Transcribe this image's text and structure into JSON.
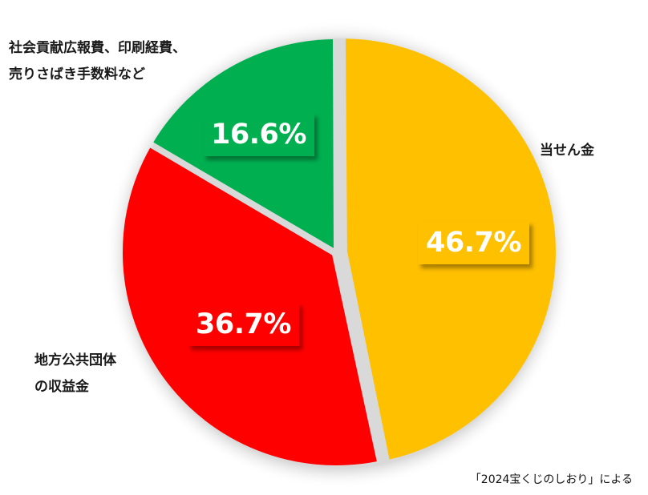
{
  "chart_data": {
    "type": "pie",
    "title": "",
    "start_angle_deg": 0,
    "direction": "clockwise",
    "exploded": true,
    "slices": [
      {
        "label": "当せん金",
        "value": 46.7,
        "display": "46.7%",
        "color": "#FFC000"
      },
      {
        "label": "地方公共団体の収益金",
        "value": 36.7,
        "display": "36.7%",
        "color": "#FF0000"
      },
      {
        "label": "社会貢献広報費、印刷経費、売りさばき手数料など",
        "value": 16.6,
        "display": "16.6%",
        "color": "#00B050"
      }
    ],
    "annotation": "「2024宝くじのしおり」による"
  },
  "labels": {
    "prize": "当せん金",
    "local_gov_line1": "地方公共団体",
    "local_gov_line2": "の収益金",
    "other_line1": "社会貢献広報費、印刷経費、",
    "other_line2": "売りさばき手数料など"
  },
  "percentages": {
    "prize": "46.7%",
    "local_gov": "36.7%",
    "other": "16.6%"
  },
  "source_note": "「2024宝くじのしおり」による"
}
